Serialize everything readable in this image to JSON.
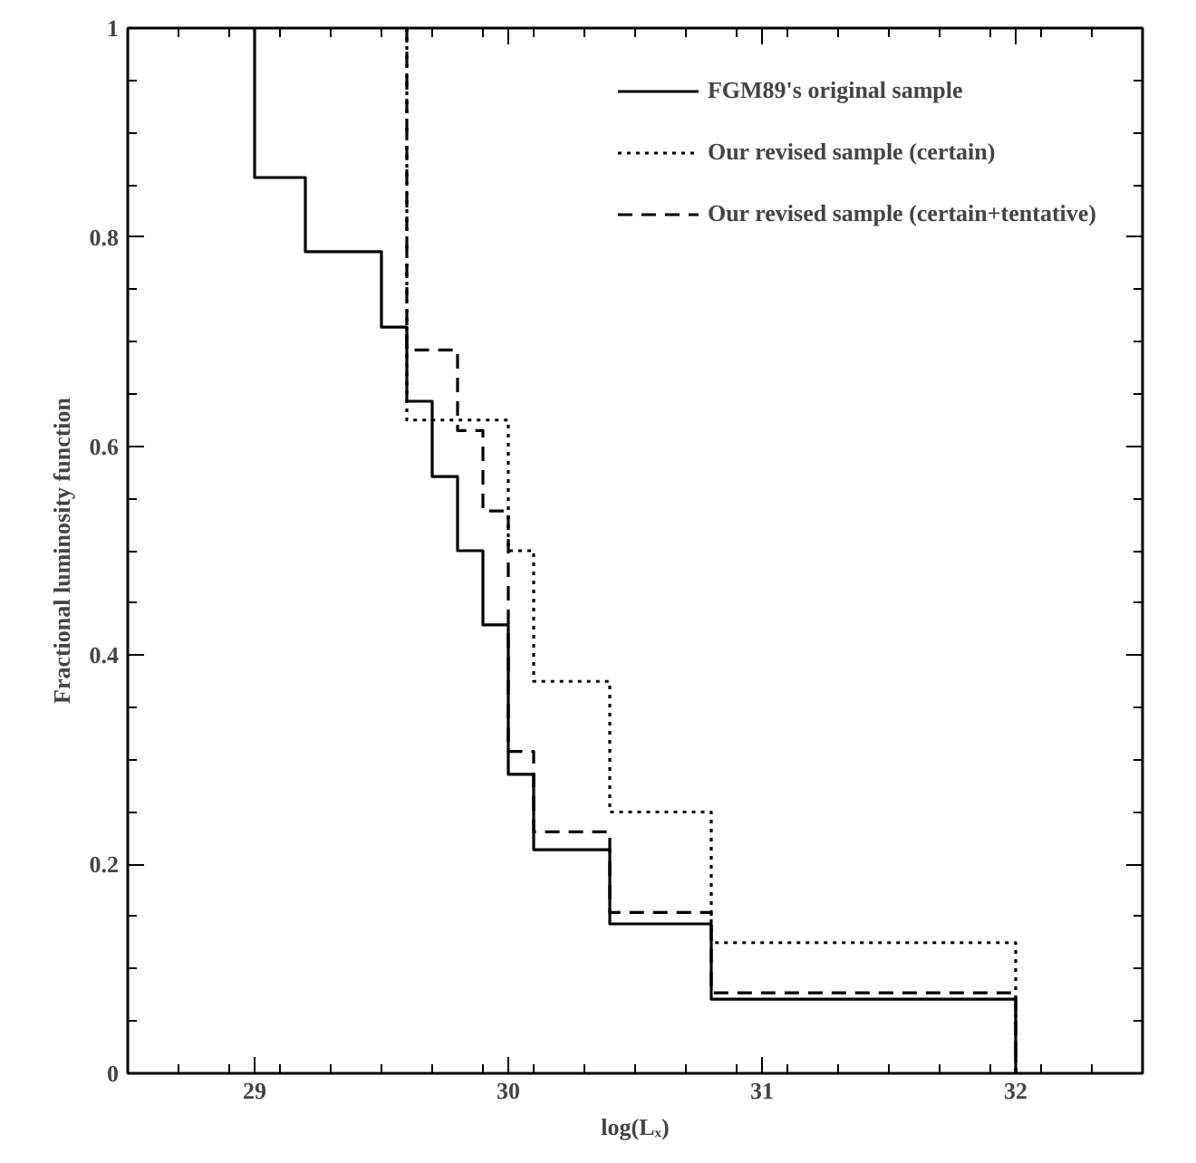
{
  "chart_data": {
    "type": "step",
    "xlabel": "log(Lₓ)",
    "ylabel": "Fractional luminosity function",
    "xlim": [
      28.5,
      32.5
    ],
    "ylim": [
      0,
      1
    ],
    "xticks": [
      29,
      30,
      31,
      32
    ],
    "yticks": [
      0,
      0.2,
      0.4,
      0.6,
      0.8,
      1
    ],
    "grid": false,
    "legend": "top right",
    "marker": "none",
    "series": [
      {
        "name": "FGM89's original sample",
        "color": "#000000",
        "line_style": "solid",
        "x": [
          29,
          29,
          29.2,
          29.5,
          29.6,
          29.7,
          29.8,
          29.9,
          30,
          30.1,
          30.4,
          30.8,
          32
        ],
        "values": [
          1,
          0.857,
          0.786,
          0.714,
          0.643,
          0.571,
          0.5,
          0.429,
          0.286,
          0.214,
          0.143,
          0.071,
          0
        ]
      },
      {
        "name": "Our revised sample (certain)",
        "color": "#000000",
        "line_style": "dotted",
        "x": [
          29.6,
          29.6,
          30.0,
          30.1,
          30.4,
          30.8,
          32
        ],
        "values": [
          1,
          0.625,
          0.5,
          0.375,
          0.25,
          0.125,
          0
        ]
      },
      {
        "name": "Our revised sample (certain+tentative)",
        "color": "#000000",
        "line_style": "dashed",
        "x": [
          29.6,
          29.6,
          29.8,
          29.9,
          30,
          30.1,
          30.4,
          30.8,
          32
        ],
        "values": [
          1,
          0.692,
          0.615,
          0.538,
          0.308,
          0.231,
          0.154,
          0.077,
          0
        ]
      }
    ]
  }
}
